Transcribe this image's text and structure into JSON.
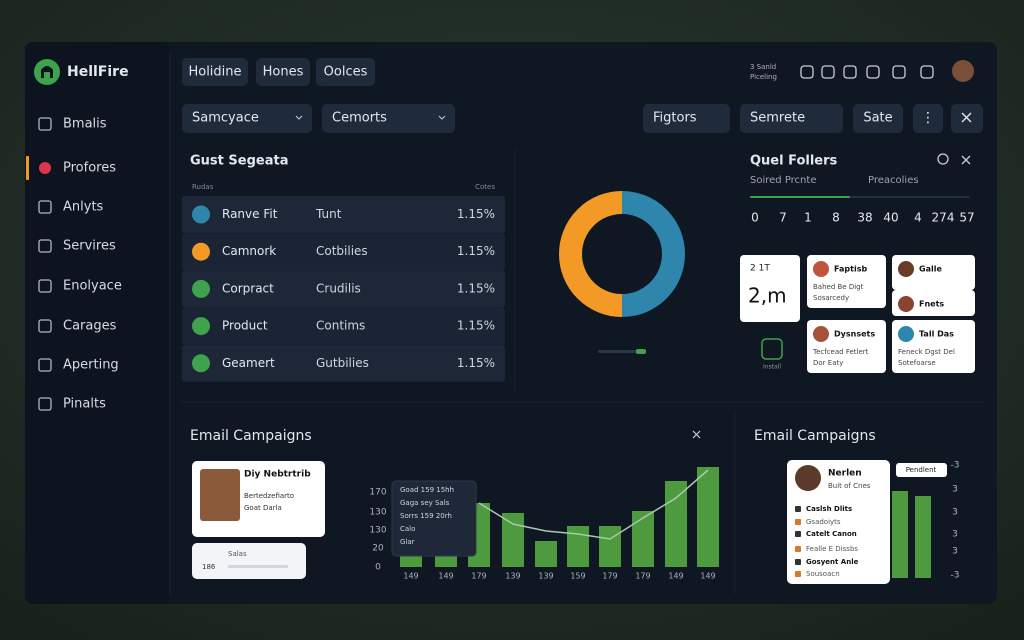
{
  "brand": "HellFire",
  "status": [
    "3 Sanld",
    "Piceling"
  ],
  "sidebar": [
    "Bmalis",
    "Profores",
    "Anlyts",
    "Servires",
    "Enolyace",
    "Carages",
    "Aperting",
    "Pinalts"
  ],
  "tabs": [
    "Holidine",
    "Hones",
    "Oolces"
  ],
  "filters": [
    "Samcyace",
    "Cemorts"
  ],
  "actions": [
    "Figtors",
    "Semrete",
    "Sate"
  ],
  "segments": {
    "title": "Gust Segeata",
    "columns": [
      "Rudas",
      "Cotes"
    ],
    "rows": [
      [
        "Ranve Fit",
        "Tunt",
        "1.15%"
      ],
      [
        "Camnork",
        "Cotbilies",
        "1.15%"
      ],
      [
        "Corpract",
        "Crudilis",
        "1.15%"
      ],
      [
        "Product",
        "Contims",
        "1.15%"
      ],
      [
        "Geamert",
        "Gutbilies",
        "1.15%"
      ]
    ]
  },
  "donut": {
    "values": [
      50,
      50
    ],
    "colors": [
      "#2f86ad",
      "#f39a26"
    ]
  },
  "followers": {
    "title": "Quel Follers",
    "tabs": [
      "Soired Prcnte",
      "Preacolies"
    ],
    "numbers": [
      "0",
      "7",
      "1",
      "8",
      "38",
      "40",
      "4",
      "274",
      "57"
    ]
  },
  "cards": {
    "stat": {
      "label": "2 1T",
      "value": "2,m"
    },
    "install": "Install",
    "people": [
      {
        "name": "Faptisb",
        "lines": [
          "Bahed Be Digt",
          "Sosarcedy"
        ]
      },
      {
        "name": "Galle",
        "lines": []
      },
      {
        "name": "Fnets",
        "lines": []
      },
      {
        "name": "Dysnsets",
        "lines": [
          "Tecfcead Fetlert",
          "Dor Eaty"
        ]
      },
      {
        "name": "Tall Das",
        "lines": [
          "Feneck Dgst Del",
          "Sotefoarse"
        ]
      }
    ]
  },
  "email_left": {
    "title": "Email Campaigns",
    "profile": {
      "name": "Diy Nebtrtrib",
      "lines": [
        "Bertedzefiarto",
        "Goat Darla"
      ]
    },
    "sales": {
      "label": "Salas",
      "value": "186"
    },
    "tooltip": [
      "Goad 159 15hh",
      "Gaga sey Sals",
      "Sorrs 159 20rh",
      "Calo",
      "Glar"
    ],
    "y_labels": [
      "170",
      "130",
      "130",
      "20",
      "0"
    ],
    "x_labels": [
      "149",
      "149",
      "179",
      "139",
      "139",
      "159",
      "179",
      "179",
      "149",
      "149"
    ],
    "bars": {
      "values": [
        12,
        12,
        64,
        54,
        26,
        41,
        41,
        56,
        86,
        100
      ],
      "ylim": [
        0,
        100
      ],
      "color": "#4e9a3e"
    },
    "line": {
      "values": [
        null,
        null,
        64,
        43,
        36,
        33,
        28,
        49,
        69,
        97
      ],
      "color": "#a9c7b2"
    }
  },
  "email_right": {
    "title": "Email Campaigns",
    "badge": "Pendlent",
    "profile": {
      "name": "Nerlen",
      "lines": [
        "Buit of Cnes"
      ]
    },
    "items": [
      "Caslsh Dlits",
      "Gsadoiyts",
      "Catelt Canon",
      "Fealle E Dissbs",
      "Gosyent Anle",
      "Sousoacn"
    ],
    "labels": [
      "-3",
      "3",
      "3",
      "3",
      "3",
      "-3"
    ],
    "bars": {
      "values": [
        87,
        82
      ],
      "ylim": [
        0,
        100
      ],
      "color": "#4e9a3e"
    }
  }
}
